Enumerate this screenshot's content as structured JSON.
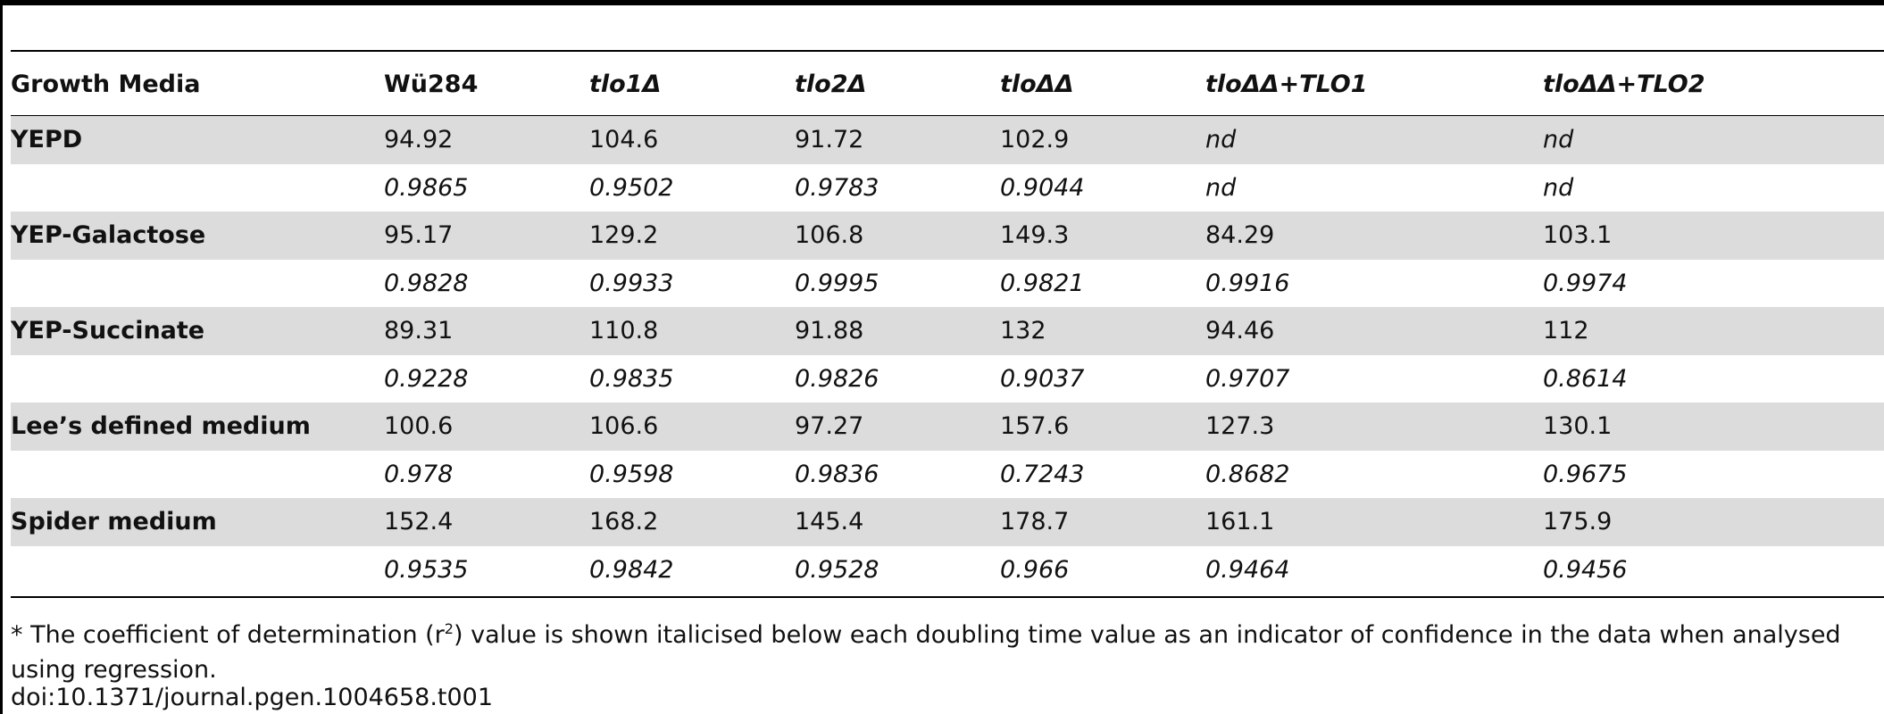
{
  "table": {
    "headers": [
      "Growth Media",
      "Wü284",
      "tlo1Δ",
      "tlo2Δ",
      "tloΔΔ",
      "tloΔΔ+TLO1",
      "tloΔΔ+TLO2"
    ],
    "rows": [
      {
        "media": "YEPD",
        "values": [
          "94.92",
          "104.6",
          "91.72",
          "102.9",
          "nd",
          "nd"
        ],
        "r2": [
          "0.9865",
          "0.9502",
          "0.9783",
          "0.9044",
          "nd",
          "nd"
        ]
      },
      {
        "media": "YEP-Galactose",
        "values": [
          "95.17",
          "129.2",
          "106.8",
          "149.3",
          "84.29",
          "103.1"
        ],
        "r2": [
          "0.9828",
          "0.9933",
          "0.9995",
          "0.9821",
          "0.9916",
          "0.9974"
        ]
      },
      {
        "media": "YEP-Succinate",
        "values": [
          "89.31",
          "110.8",
          "91.88",
          "132",
          "94.46",
          "112"
        ],
        "r2": [
          "0.9228",
          "0.9835",
          "0.9826",
          "0.9037",
          "0.9707",
          "0.8614"
        ]
      },
      {
        "media": "Lee’s defined medium",
        "values": [
          "100.6",
          "106.6",
          "97.27",
          "157.6",
          "127.3",
          "130.1"
        ],
        "r2": [
          "0.978",
          "0.9598",
          "0.9836",
          "0.7243",
          "0.8682",
          "0.9675"
        ]
      },
      {
        "media": "Spider medium",
        "values": [
          "152.4",
          "168.2",
          "145.4",
          "178.7",
          "161.1",
          "175.9"
        ],
        "r2": [
          "0.9535",
          "0.9842",
          "0.9528",
          "0.966",
          "0.9464",
          "0.9456"
        ]
      }
    ]
  },
  "footnote": {
    "before": "* The coefficient of determination (r",
    "sup": "2",
    "after": ") value is shown italicised below each doubling time value as an indicator of confidence in the data when analysed using regression."
  },
  "doi": "doi:10.1371/journal.pgen.1004658.t001"
}
